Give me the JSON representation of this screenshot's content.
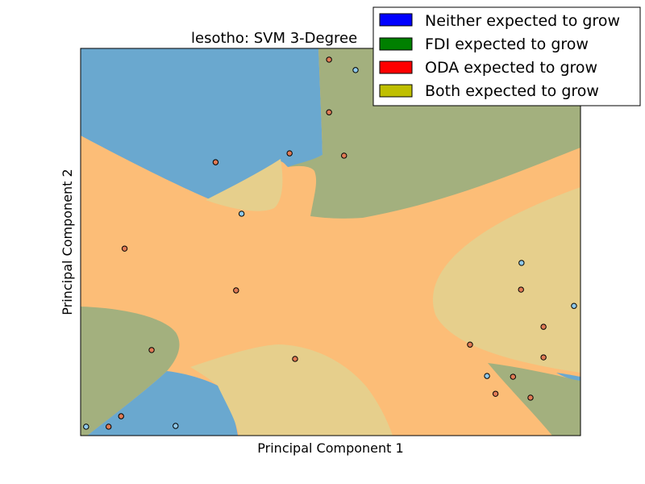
{
  "chart_data": {
    "type": "scatter",
    "title": "lesotho: SVM 3-Degree",
    "xlabel": "Principal Component 1",
    "ylabel": "Principal Component 2",
    "xlim": [
      0,
      100
    ],
    "ylim": [
      0,
      100
    ],
    "grid": false,
    "legend_location": "top-right",
    "legend": [
      {
        "label": "Neither expected to grow",
        "color": "#0000ff"
      },
      {
        "label": "FDI expected to grow",
        "color": "#008000"
      },
      {
        "label": "ODA expected to grow",
        "color": "#ff0000"
      },
      {
        "label": "Both expected to grow",
        "color": "#bfbf00"
      }
    ],
    "region_colors": {
      "neither": "#6aa8cf",
      "fdi": "#a3b07e",
      "oda": "#fcbd77",
      "both": "#e6cf8c"
    },
    "point_colors": {
      "neither": "#8ec8ea",
      "oda": "#e07a55"
    },
    "points": [
      {
        "x": 49.7,
        "y": 97.1,
        "class": "oda"
      },
      {
        "x": 55.0,
        "y": 94.4,
        "class": "neither"
      },
      {
        "x": 49.7,
        "y": 83.5,
        "class": "oda"
      },
      {
        "x": 41.8,
        "y": 72.9,
        "class": "oda"
      },
      {
        "x": 52.7,
        "y": 72.3,
        "class": "oda"
      },
      {
        "x": 27.0,
        "y": 70.6,
        "class": "oda"
      },
      {
        "x": 32.2,
        "y": 57.3,
        "class": "neither"
      },
      {
        "x": 8.8,
        "y": 48.3,
        "class": "oda"
      },
      {
        "x": 31.1,
        "y": 37.5,
        "class": "oda"
      },
      {
        "x": 88.2,
        "y": 44.6,
        "class": "neither"
      },
      {
        "x": 88.1,
        "y": 37.7,
        "class": "oda"
      },
      {
        "x": 98.7,
        "y": 33.5,
        "class": "neither"
      },
      {
        "x": 92.6,
        "y": 28.1,
        "class": "oda"
      },
      {
        "x": 77.9,
        "y": 23.5,
        "class": "oda"
      },
      {
        "x": 92.6,
        "y": 20.2,
        "class": "oda"
      },
      {
        "x": 14.2,
        "y": 22.1,
        "class": "oda"
      },
      {
        "x": 42.9,
        "y": 19.8,
        "class": "oda"
      },
      {
        "x": 81.3,
        "y": 15.4,
        "class": "neither"
      },
      {
        "x": 86.5,
        "y": 15.2,
        "class": "oda"
      },
      {
        "x": 83.0,
        "y": 10.8,
        "class": "oda"
      },
      {
        "x": 90.0,
        "y": 9.8,
        "class": "oda"
      },
      {
        "x": 8.1,
        "y": 5.0,
        "class": "oda"
      },
      {
        "x": 1.1,
        "y": 2.3,
        "class": "neither"
      },
      {
        "x": 5.6,
        "y": 2.3,
        "class": "oda"
      },
      {
        "x": 19.0,
        "y": 2.5,
        "class": "neither"
      }
    ]
  }
}
